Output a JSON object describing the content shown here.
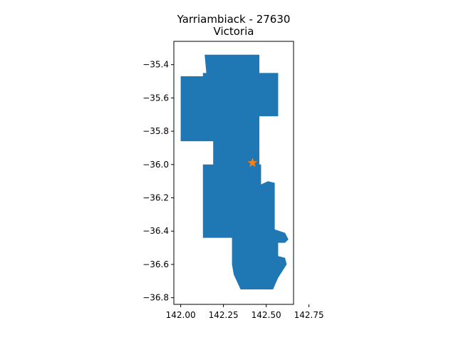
{
  "title": {
    "line1": "Yarriambiack - 27630",
    "line2": "Victoria"
  },
  "colors": {
    "region_fill": "#1f77b4",
    "marker": "#ff7f0e",
    "axis": "#000000",
    "background": "#ffffff"
  },
  "map": {
    "crs": "lon/lat degrees",
    "region_name": "Yarriambiack",
    "region_code": "27630",
    "state": "Victoria",
    "centroid_marker": {
      "type": "star",
      "lon": 142.42,
      "lat": -35.99
    },
    "outline_lonlat": [
      [
        142.14,
        -35.34
      ],
      [
        142.46,
        -35.34
      ],
      [
        142.46,
        -35.45
      ],
      [
        142.57,
        -35.45
      ],
      [
        142.57,
        -35.71
      ],
      [
        142.46,
        -35.71
      ],
      [
        142.46,
        -36.0
      ],
      [
        142.47,
        -36.0
      ],
      [
        142.47,
        -36.12
      ],
      [
        142.51,
        -36.1
      ],
      [
        142.55,
        -36.11
      ],
      [
        142.55,
        -36.39
      ],
      [
        142.61,
        -36.41
      ],
      [
        142.63,
        -36.45
      ],
      [
        142.61,
        -36.47
      ],
      [
        142.57,
        -36.47
      ],
      [
        142.57,
        -36.55
      ],
      [
        142.61,
        -36.56
      ],
      [
        142.62,
        -36.6
      ],
      [
        142.57,
        -36.68
      ],
      [
        142.54,
        -36.75
      ],
      [
        142.35,
        -36.75
      ],
      [
        142.31,
        -36.66
      ],
      [
        142.3,
        -36.6
      ],
      [
        142.3,
        -36.44
      ],
      [
        142.13,
        -36.44
      ],
      [
        142.13,
        -36.0
      ],
      [
        142.19,
        -36.0
      ],
      [
        142.19,
        -35.86
      ],
      [
        142.0,
        -35.86
      ],
      [
        142.0,
        -35.47
      ],
      [
        142.13,
        -35.47
      ],
      [
        142.13,
        -35.45
      ],
      [
        142.15,
        -35.45
      ]
    ]
  },
  "chart_data": {
    "type": "map",
    "title": "Yarriambiack - 27630\nVictoria",
    "xlim": [
      141.96,
      142.66
    ],
    "ylim": [
      -36.84,
      -35.26
    ],
    "xticks": [
      142.0,
      142.25,
      142.5,
      142.75
    ],
    "xtick_labels": [
      "142.00",
      "142.25",
      "142.50",
      "142.75"
    ],
    "yticks": [
      -35.4,
      -35.6,
      -35.8,
      -36.0,
      -36.2,
      -36.4,
      -36.6,
      -36.8
    ],
    "ytick_labels": [
      "−35.4",
      "−35.6",
      "−35.8",
      "−36.0",
      "−36.2",
      "−36.4",
      "−36.6",
      "−36.8"
    ],
    "grid": false,
    "legend": "none"
  }
}
